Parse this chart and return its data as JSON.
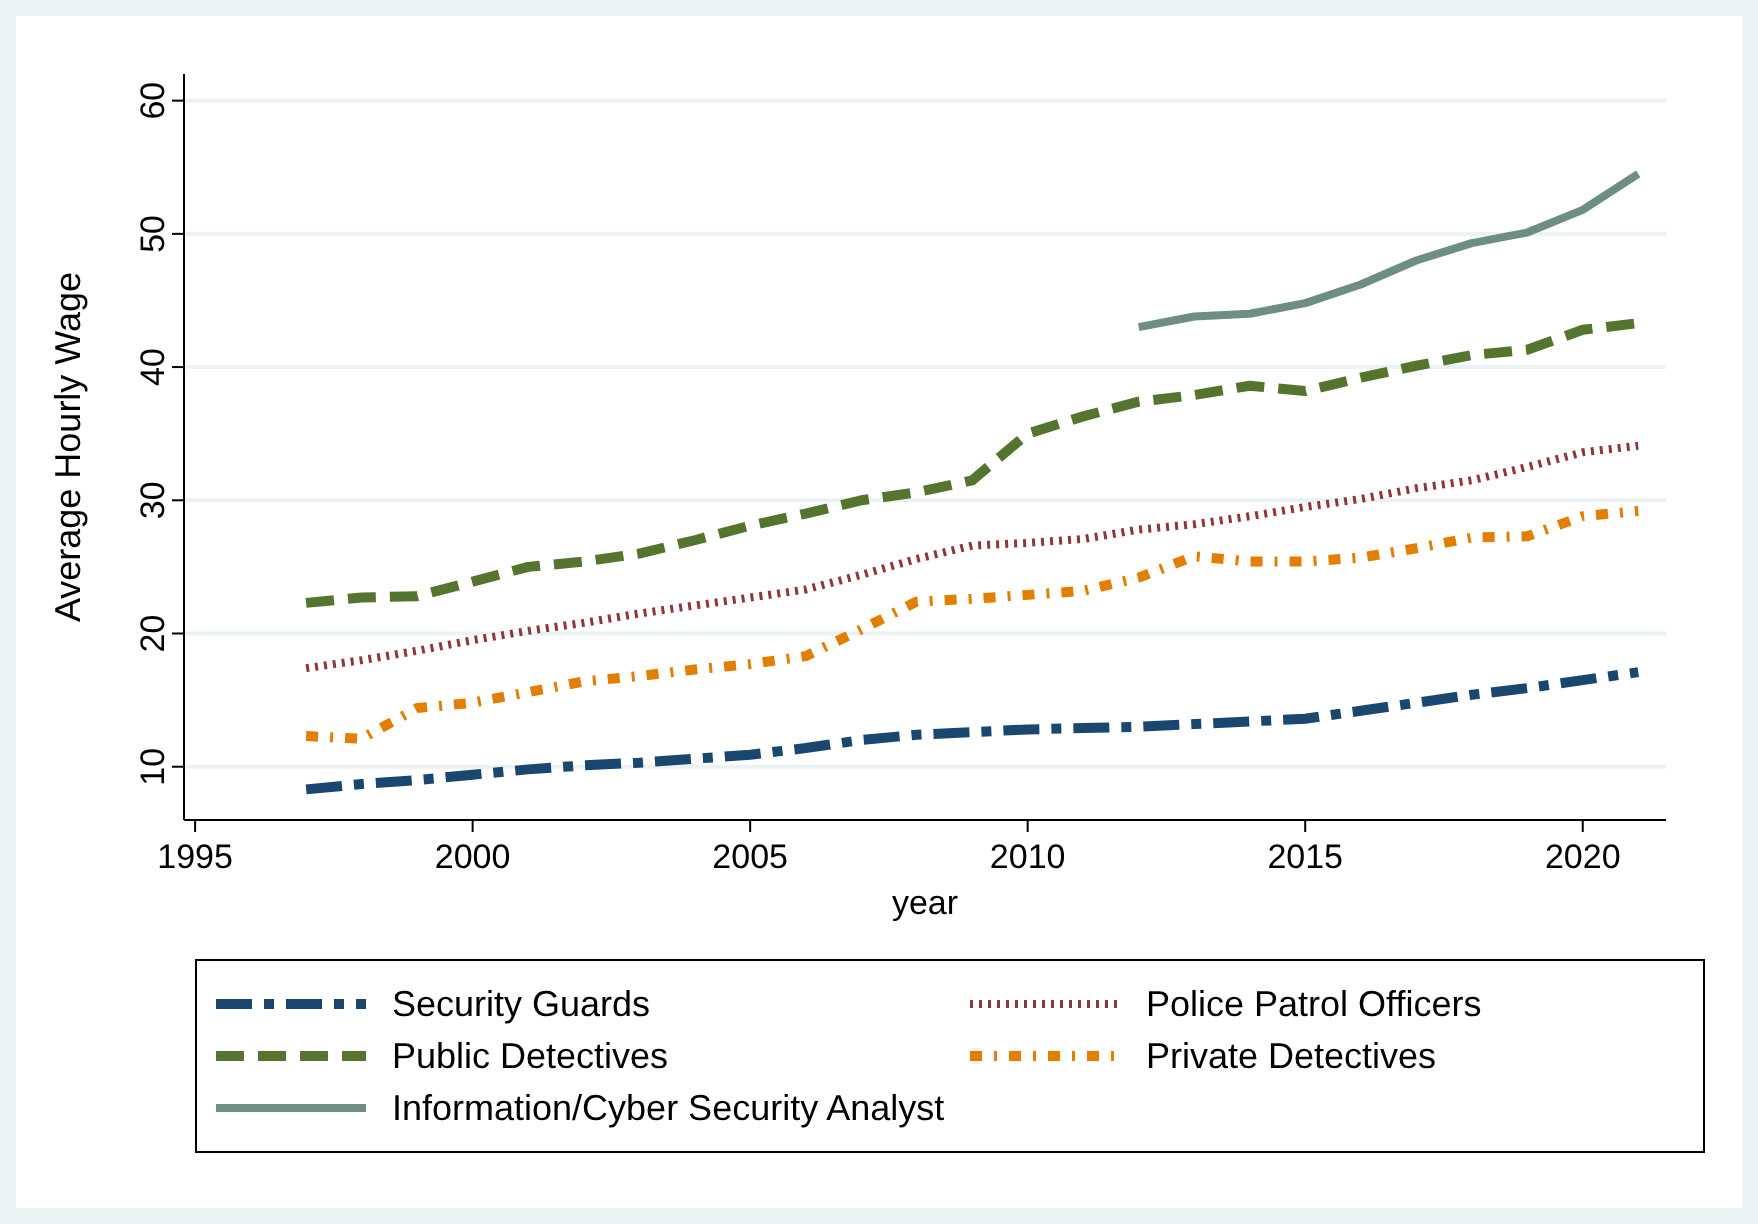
{
  "chart_data": {
    "type": "line",
    "xlabel": "year",
    "ylabel": "Average Hourly Wage",
    "x": [
      1997,
      1998,
      1999,
      2000,
      2001,
      2002,
      2003,
      2004,
      2005,
      2006,
      2007,
      2008,
      2009,
      2010,
      2011,
      2012,
      2013,
      2014,
      2015,
      2016,
      2017,
      2018,
      2019,
      2020,
      2021
    ],
    "xlim": [
      1994.8,
      2021.5
    ],
    "xticks": [
      1995,
      2000,
      2005,
      2010,
      2015,
      2020
    ],
    "ylim": [
      6,
      62
    ],
    "yticks": [
      10,
      20,
      30,
      40,
      50,
      60
    ],
    "grid": "y",
    "legend": "bottom",
    "series": [
      {
        "name": "Security Guards",
        "color": "#1a476f",
        "line_style": "dashdot",
        "values": [
          8.3,
          8.7,
          9.0,
          9.4,
          9.8,
          10.1,
          10.3,
          10.6,
          10.9,
          11.4,
          12.0,
          12.4,
          12.6,
          12.8,
          12.9,
          13.0,
          13.2,
          13.4,
          13.6,
          14.2,
          14.8,
          15.4,
          15.9,
          16.5,
          17.1
        ]
      },
      {
        "name": "Police Patrol Officers",
        "color": "#90353b",
        "line_style": "dotted",
        "values": [
          17.4,
          18.0,
          18.7,
          19.5,
          20.2,
          20.8,
          21.5,
          22.1,
          22.7,
          23.3,
          24.4,
          25.6,
          26.6,
          26.8,
          27.1,
          27.8,
          28.2,
          28.8,
          29.5,
          30.1,
          30.9,
          31.5,
          32.5,
          33.6,
          34.1
        ]
      },
      {
        "name": "Public Detectives",
        "color": "#55752f",
        "line_style": "dashed",
        "values": [
          22.3,
          22.7,
          22.8,
          23.9,
          25.0,
          25.4,
          26.0,
          27.0,
          28.1,
          29.0,
          30.0,
          30.6,
          31.5,
          35.0,
          36.3,
          37.4,
          37.9,
          38.6,
          38.2,
          39.2,
          40.1,
          40.9,
          41.3,
          42.8,
          43.3
        ]
      },
      {
        "name": "Private Detectives",
        "color": "#e37e00",
        "line_style": "dashdotdot",
        "values": [
          12.3,
          12.1,
          14.4,
          14.8,
          15.6,
          16.4,
          16.8,
          17.3,
          17.7,
          18.3,
          20.3,
          22.4,
          22.6,
          22.9,
          23.2,
          24.2,
          25.8,
          25.4,
          25.4,
          25.7,
          26.4,
          27.2,
          27.3,
          28.8,
          29.2
        ]
      },
      {
        "name": "Information/Cyber Security Analyst",
        "color": "#6e8e84",
        "line_style": "solid",
        "x": [
          2012,
          2013,
          2014,
          2015,
          2016,
          2017,
          2018,
          2019,
          2020,
          2021
        ],
        "values": [
          43.0,
          43.8,
          44.0,
          44.8,
          46.2,
          48.0,
          49.3,
          50.1,
          51.8,
          54.5
        ]
      }
    ]
  }
}
